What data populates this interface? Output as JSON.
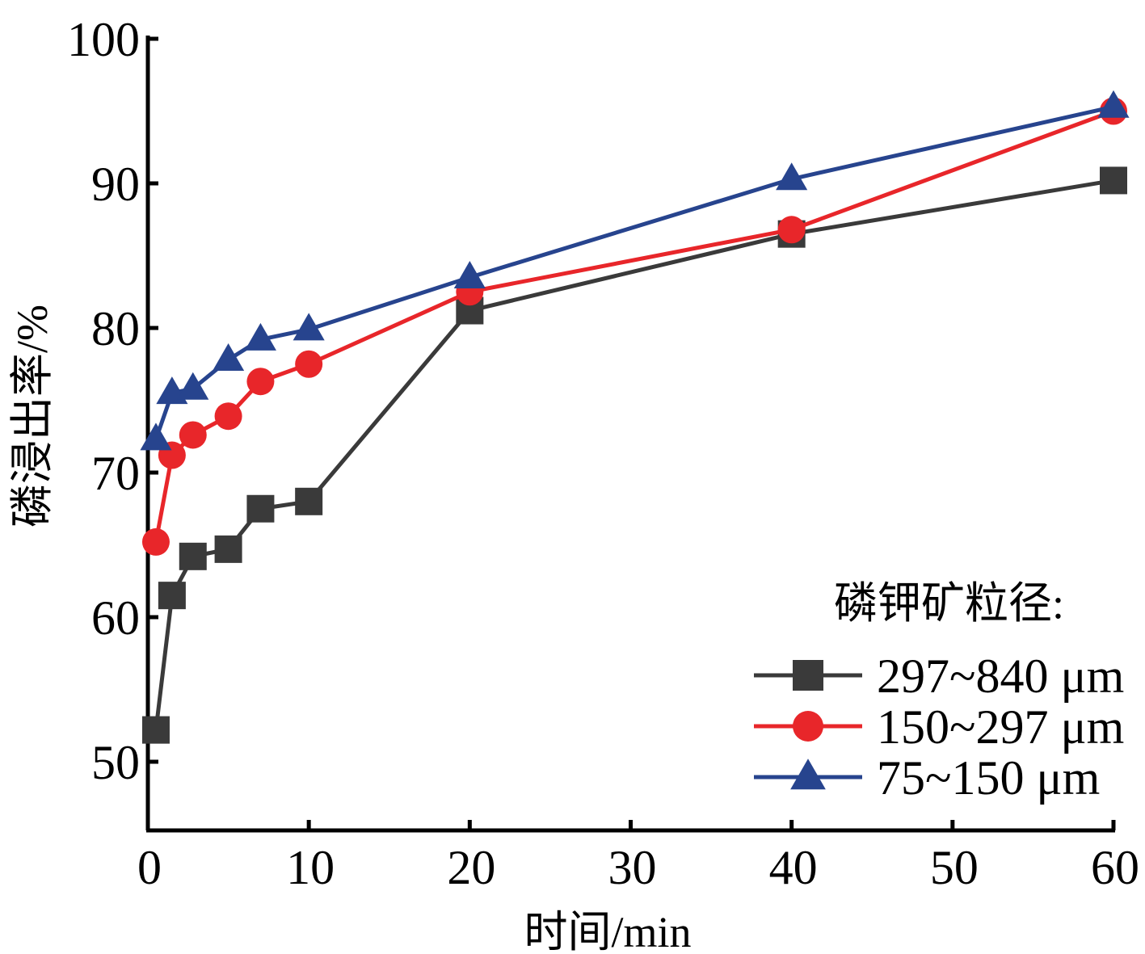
{
  "chart_data": {
    "type": "line",
    "title": "",
    "xlabel": "时间/min",
    "ylabel": "磷浸出率/%",
    "xlim": [
      0,
      60
    ],
    "ylim": [
      45,
      100
    ],
    "xticks": [
      0,
      10,
      20,
      30,
      40,
      50,
      60
    ],
    "yticks": [
      50,
      60,
      70,
      80,
      90,
      100
    ],
    "grid": false,
    "legend": {
      "title": "磷钾矿粒径:",
      "placement": "bottom-right"
    },
    "series": [
      {
        "name": "297~840 μm",
        "color": "#3a3a3a",
        "marker": "square",
        "x": [
          0.5,
          1.5,
          2.8,
          5,
          7,
          10,
          20,
          40,
          60
        ],
        "y": [
          52.2,
          61.5,
          64.2,
          64.7,
          67.5,
          68.0,
          81.2,
          86.5,
          90.2
        ]
      },
      {
        "name": "150~297 μm",
        "color": "#e8262a",
        "marker": "circle",
        "x": [
          0.5,
          1.5,
          2.8,
          5,
          7,
          10,
          20,
          40,
          60
        ],
        "y": [
          65.2,
          71.2,
          72.6,
          73.9,
          76.3,
          77.5,
          82.5,
          86.8,
          95.0
        ]
      },
      {
        "name": "75~150 μm",
        "color": "#27448e",
        "marker": "triangle",
        "x": [
          0.5,
          1.5,
          2.8,
          5,
          7,
          10,
          20,
          40,
          60
        ],
        "y": [
          72.3,
          75.5,
          75.8,
          77.8,
          79.2,
          79.9,
          83.5,
          90.3,
          95.3
        ]
      }
    ]
  }
}
